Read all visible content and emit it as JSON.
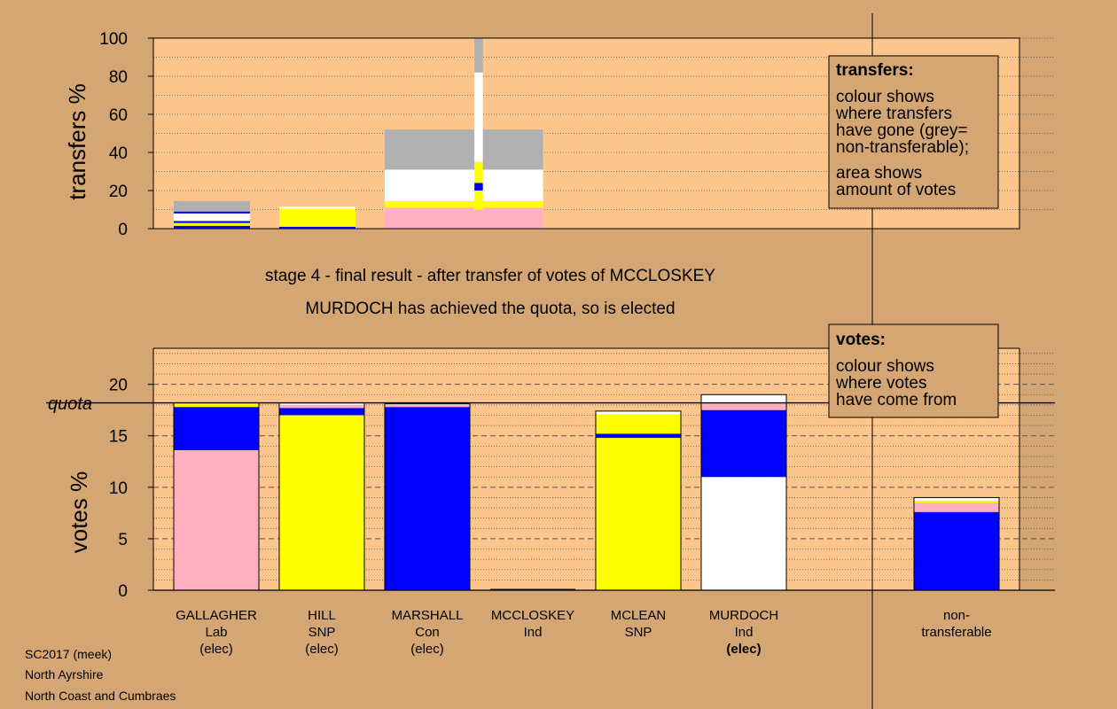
{
  "colors": {
    "page_bg": "#d4a674",
    "plot_bg": "#fbc58c",
    "legend_bg": "#d4a674",
    "Lab": "#ffb0c0",
    "SNP": "#ffff00",
    "Con": "#0000ff",
    "Ind": "#ffffff",
    "nontransferable": "#b0b0b0"
  },
  "top_chart": {
    "ylabel": "transfers %",
    "yticks": [
      "0",
      "20",
      "40",
      "60",
      "80",
      "100"
    ],
    "legend": {
      "title": "transfers:",
      "lines": [
        "colour shows",
        "where transfers",
        "have gone (grey=",
        "non-transferable);"
      ],
      "lines2": [
        "area shows",
        "amount of votes"
      ]
    }
  },
  "captions": {
    "line1": "stage 4 - final result - after transfer of votes of MCCLOSKEY",
    "line2": "MURDOCH has achieved the quota, so is elected"
  },
  "bottom_chart": {
    "ylabel": "votes %",
    "quota_label": "quota",
    "yticks": [
      "0",
      "5",
      "10",
      "15",
      "20"
    ],
    "legend": {
      "title": "votes:",
      "lines": [
        "colour shows",
        "where votes",
        "have come from"
      ]
    }
  },
  "candidates": [
    {
      "name": "GALLAGHER",
      "party": "Lab",
      "status": "(elec)"
    },
    {
      "name": "HILL",
      "party": "SNP",
      "status": "(elec)"
    },
    {
      "name": "MARSHALL",
      "party": "Con",
      "status": "(elec)"
    },
    {
      "name": "MCCLOSKEY",
      "party": "Ind",
      "status": ""
    },
    {
      "name": "MCLEAN",
      "party": "SNP",
      "status": ""
    },
    {
      "name": "MURDOCH",
      "party": "Ind",
      "status": "(elec)"
    }
  ],
  "nontransferable_label": {
    "line1": "non-",
    "line2": "transferable"
  },
  "footer": [
    "SC2017 (meek)",
    "North Ayrshire",
    "North Coast and Cumbraes"
  ],
  "chart_data": [
    {
      "type": "bar",
      "title": "",
      "ylabel": "transfers %",
      "ylim": [
        0,
        100
      ],
      "grid": true,
      "stacked_bars": [
        {
          "slot": 0,
          "segments": [
            [
              "Con",
              1.5
            ],
            [
              "SNP",
              1.5
            ],
            [
              "Con",
              1.0
            ],
            [
              "Ind",
              4.0
            ],
            [
              "Con",
              1.0
            ],
            [
              "nontransferable",
              5.5
            ]
          ]
        },
        {
          "slot": 1,
          "segments": [
            [
              "Con",
              1.0
            ],
            [
              "SNP",
              9.5
            ],
            [
              "Ind",
              1.0
            ]
          ]
        },
        {
          "slot": 2.5,
          "width": 1.5,
          "segments": [
            [
              "Lab",
              11.0
            ],
            [
              "SNP",
              3.5
            ],
            [
              "Ind",
              16.5
            ],
            [
              "nontransferable",
              21.0
            ]
          ]
        },
        {
          "slot": 3.35,
          "width": 0.08,
          "segments": [
            [
              "Lab",
              10.0
            ],
            [
              "SNP",
              10.0
            ],
            [
              "Con",
              4.0
            ],
            [
              "SNP",
              11.0
            ],
            [
              "Ind",
              47.0
            ],
            [
              "nontransferable",
              18.0
            ]
          ]
        }
      ]
    },
    {
      "type": "bar",
      "title": "",
      "ylabel": "votes %",
      "ylim": [
        0,
        23.5
      ],
      "quota": 18.2,
      "grid": true,
      "categories": [
        "GALLAGHER",
        "HILL",
        "MARSHALL",
        "MCCLOSKEY",
        "MCLEAN",
        "MURDOCH",
        "non-transferable"
      ],
      "stacks": [
        [
          [
            "Lab",
            13.6
          ],
          [
            "Con",
            4.2
          ],
          [
            "SNP",
            0.3
          ],
          [
            "Ind",
            0.1
          ]
        ],
        [
          [
            "SNP",
            17.0
          ],
          [
            "Con",
            0.7
          ],
          [
            "Lab",
            0.3
          ],
          [
            "Ind",
            0.2
          ]
        ],
        [
          [
            "Con",
            17.8
          ],
          [
            "Lab",
            0.2
          ],
          [
            "Ind",
            0.1
          ]
        ],
        [],
        [
          [
            "SNP",
            14.8
          ],
          [
            "Con",
            0.4
          ],
          [
            "SNP",
            1.9
          ],
          [
            "Ind",
            0.3
          ]
        ],
        [
          [
            "Ind",
            11.0
          ],
          [
            "Con",
            6.5
          ],
          [
            "Lab",
            0.7
          ],
          [
            "Ind",
            0.8
          ]
        ],
        [
          [
            "Con",
            7.6
          ],
          [
            "Lab",
            0.9
          ],
          [
            "SNP",
            0.2
          ],
          [
            "Ind",
            0.3
          ]
        ]
      ]
    }
  ]
}
